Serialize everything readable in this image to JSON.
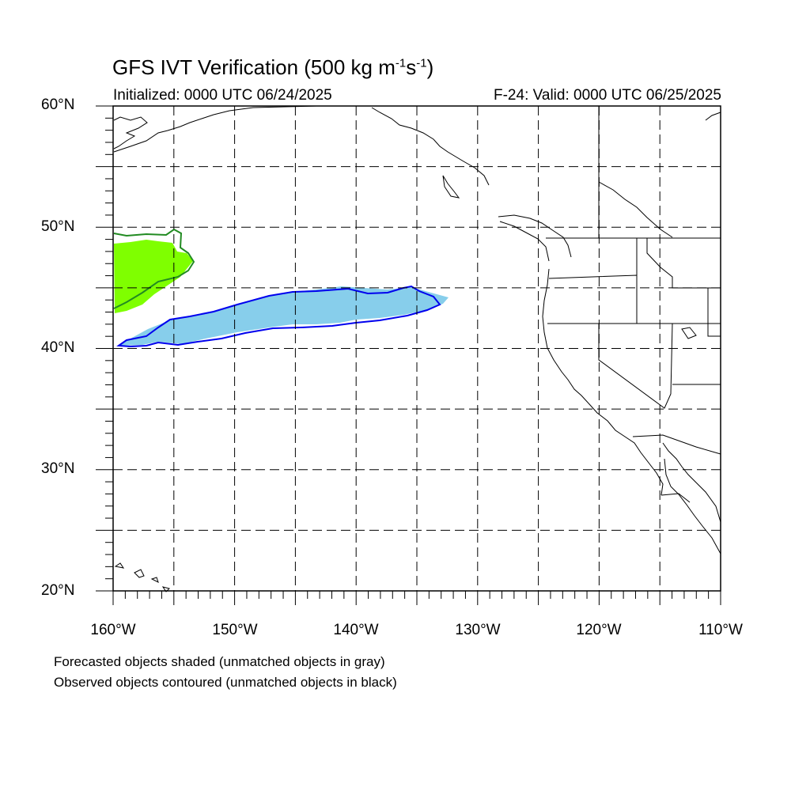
{
  "title": {
    "prefix": "GFS IVT Verification (500 kg m",
    "exp1": "-1",
    "mid": "s",
    "exp2": "-1",
    "suffix": ")"
  },
  "initialized": "Initialized: 0000 UTC 06/24/2025",
  "valid": "F-24: Valid: 0000 UTC 06/25/2025",
  "lat_labels": [
    "60°N",
    "50°N",
    "40°N",
    "30°N",
    "20°N"
  ],
  "lon_labels": [
    "160°W",
    "150°W",
    "140°W",
    "130°W",
    "120°W",
    "110°W"
  ],
  "legend_notes": [
    "Forecasted objects shaded (unmatched objects in gray)",
    "Observed objects contoured (unmatched objects in black)"
  ],
  "colors": {
    "forecast_object_1": "#87ceeb",
    "observed_object_1": "#0000ee",
    "forecast_object_2": "#7fff00",
    "observed_object_2": "#228b22",
    "coastline": "#000000",
    "grid": "#000000"
  },
  "map": {
    "lat_range": [
      20,
      60
    ],
    "lon_range": [
      -160,
      -110
    ],
    "gridlines": "dashed, every 5 degrees"
  }
}
